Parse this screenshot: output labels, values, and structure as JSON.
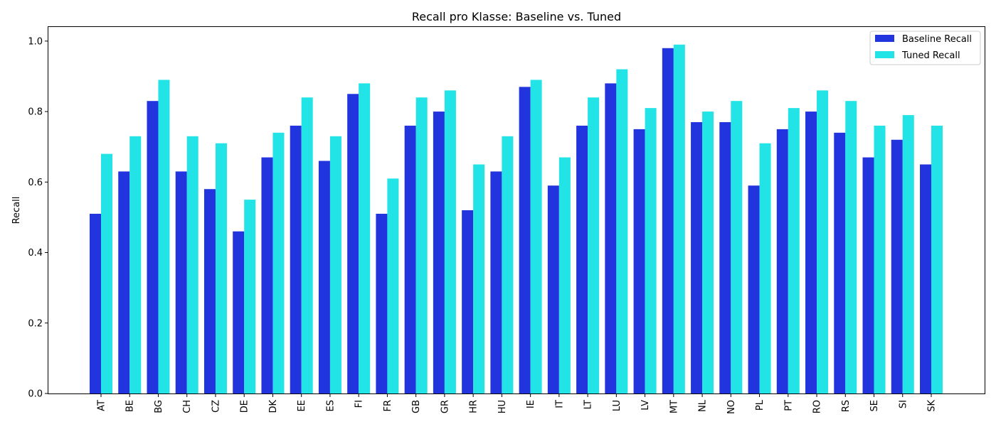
{
  "chart_data": {
    "type": "bar",
    "title": "Recall pro Klasse: Baseline vs. Tuned",
    "xlabel": "",
    "ylabel": "Recall",
    "ylim": [
      0,
      1.04
    ],
    "yticks": [
      "0.0",
      "0.2",
      "0.4",
      "0.6",
      "0.8",
      "1.0"
    ],
    "grid": false,
    "legend_position": "top-right",
    "categories": [
      "AT",
      "BE",
      "BG",
      "CH",
      "CZ",
      "DE",
      "DK",
      "EE",
      "ES",
      "FI",
      "FR",
      "GB",
      "GR",
      "HR",
      "HU",
      "IE",
      "IT",
      "LT",
      "LU",
      "LV",
      "MT",
      "NL",
      "NO",
      "PL",
      "PT",
      "RO",
      "RS",
      "SE",
      "SI",
      "SK"
    ],
    "series": [
      {
        "name": "Baseline Recall",
        "color": "#2234dd",
        "values": [
          0.51,
          0.63,
          0.83,
          0.63,
          0.58,
          0.46,
          0.67,
          0.76,
          0.66,
          0.85,
          0.51,
          0.76,
          0.8,
          0.52,
          0.63,
          0.87,
          0.59,
          0.76,
          0.88,
          0.75,
          0.98,
          0.77,
          0.77,
          0.59,
          0.75,
          0.8,
          0.74,
          0.67,
          0.72,
          0.65
        ]
      },
      {
        "name": "Tuned Recall",
        "color": "#22e3e6",
        "values": [
          0.68,
          0.73,
          0.89,
          0.73,
          0.71,
          0.55,
          0.74,
          0.84,
          0.73,
          0.88,
          0.61,
          0.84,
          0.86,
          0.65,
          0.73,
          0.89,
          0.67,
          0.84,
          0.92,
          0.81,
          0.99,
          0.8,
          0.83,
          0.71,
          0.81,
          0.86,
          0.83,
          0.76,
          0.79,
          0.76
        ]
      }
    ]
  }
}
